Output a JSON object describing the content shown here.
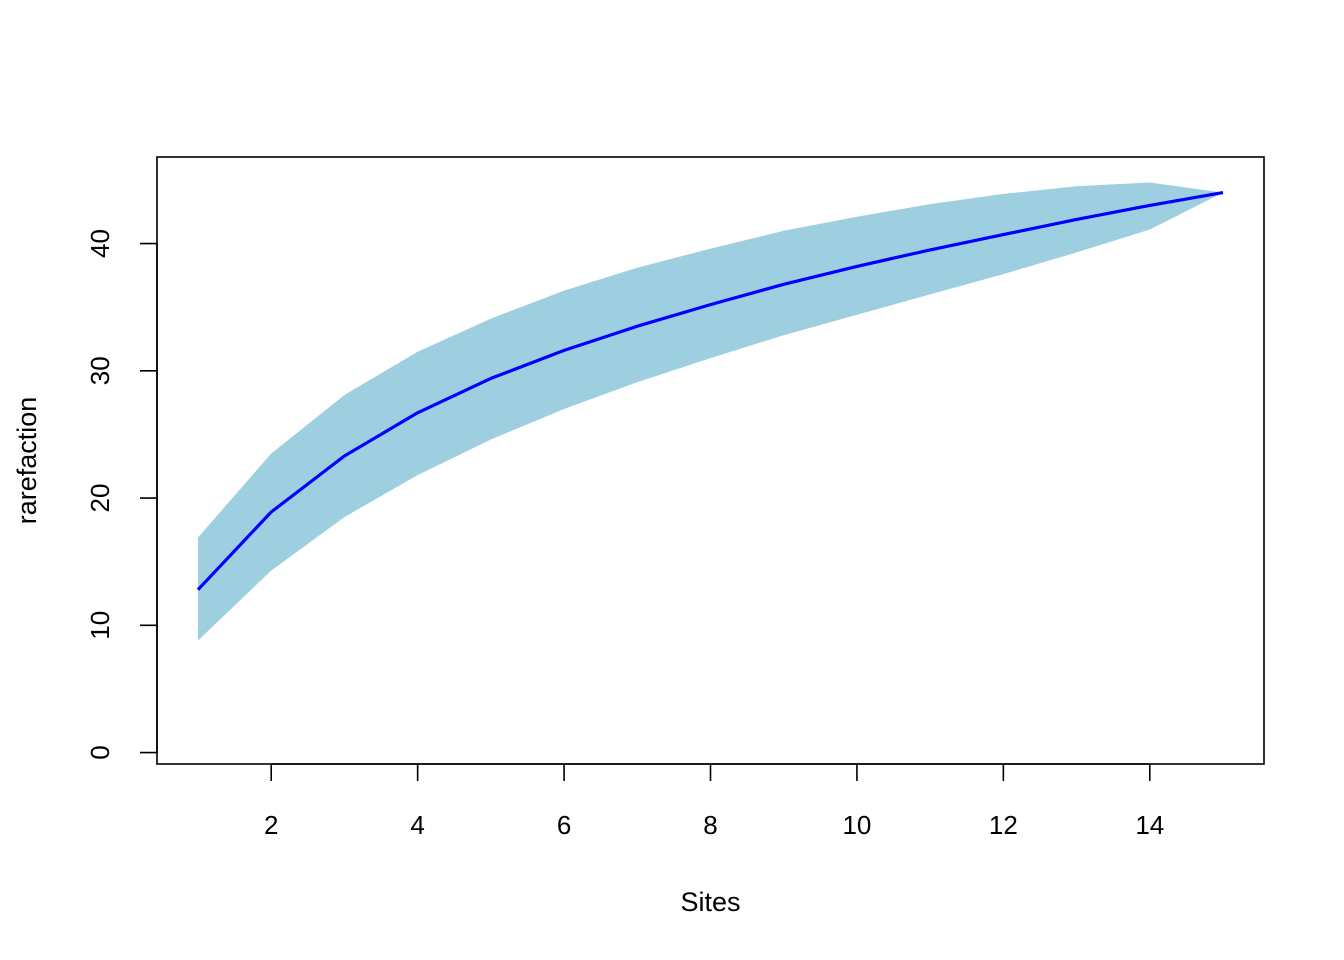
{
  "chart_data": {
    "type": "area",
    "title": "",
    "xlabel": "Sites",
    "ylabel": "rarefaction",
    "xlim": [
      0.44,
      15.56
    ],
    "ylim": [
      -0.9,
      46.8
    ],
    "xticks": [
      2,
      4,
      6,
      8,
      10,
      12,
      14
    ],
    "yticks": [
      0,
      10,
      20,
      30,
      40
    ],
    "grid": false,
    "legend": "none",
    "x": [
      1,
      2,
      3,
      4,
      5,
      6,
      7,
      8,
      9,
      10,
      11,
      12,
      13,
      14,
      15
    ],
    "series": [
      {
        "kind": "line",
        "values": [
          12.8,
          18.9,
          23.3,
          26.7,
          29.4,
          31.6,
          33.5,
          35.2,
          36.8,
          38.2,
          39.5,
          40.7,
          41.9,
          43.0,
          44.0
        ],
        "color": "#0000ff"
      },
      {
        "kind": "band",
        "upper": [
          16.9,
          23.5,
          28.1,
          31.5,
          34.1,
          36.3,
          38.1,
          39.6,
          41.0,
          42.1,
          43.1,
          43.9,
          44.5,
          44.8,
          44.0
        ],
        "lower": [
          8.8,
          14.3,
          18.5,
          21.8,
          24.6,
          27.0,
          29.1,
          31.0,
          32.8,
          34.4,
          36.0,
          37.6,
          39.3,
          41.1,
          44.0
        ],
        "color": "#9ecfe0"
      }
    ]
  }
}
